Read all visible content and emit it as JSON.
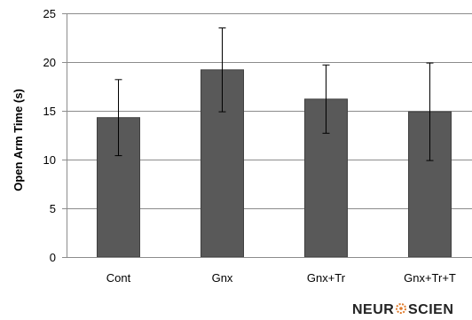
{
  "chart_data": {
    "type": "bar",
    "categories": [
      "Cont",
      "Gnx",
      "Gnx+Tr",
      "Gnx+Tr+T"
    ],
    "values": [
      14.3,
      19.2,
      16.2,
      14.9
    ],
    "error": [
      3.9,
      4.3,
      3.5,
      5.0
    ],
    "ylabel": "Open Arm Time (s)",
    "xlabel": "",
    "ylim": [
      0,
      25
    ],
    "yticks": [
      0,
      5,
      10,
      15,
      20,
      25
    ],
    "grid": true,
    "bar_color": "#595959",
    "error_bar_color": "#000000"
  },
  "logo": {
    "left_text": "NEUR",
    "right_text": "SCIEN"
  }
}
